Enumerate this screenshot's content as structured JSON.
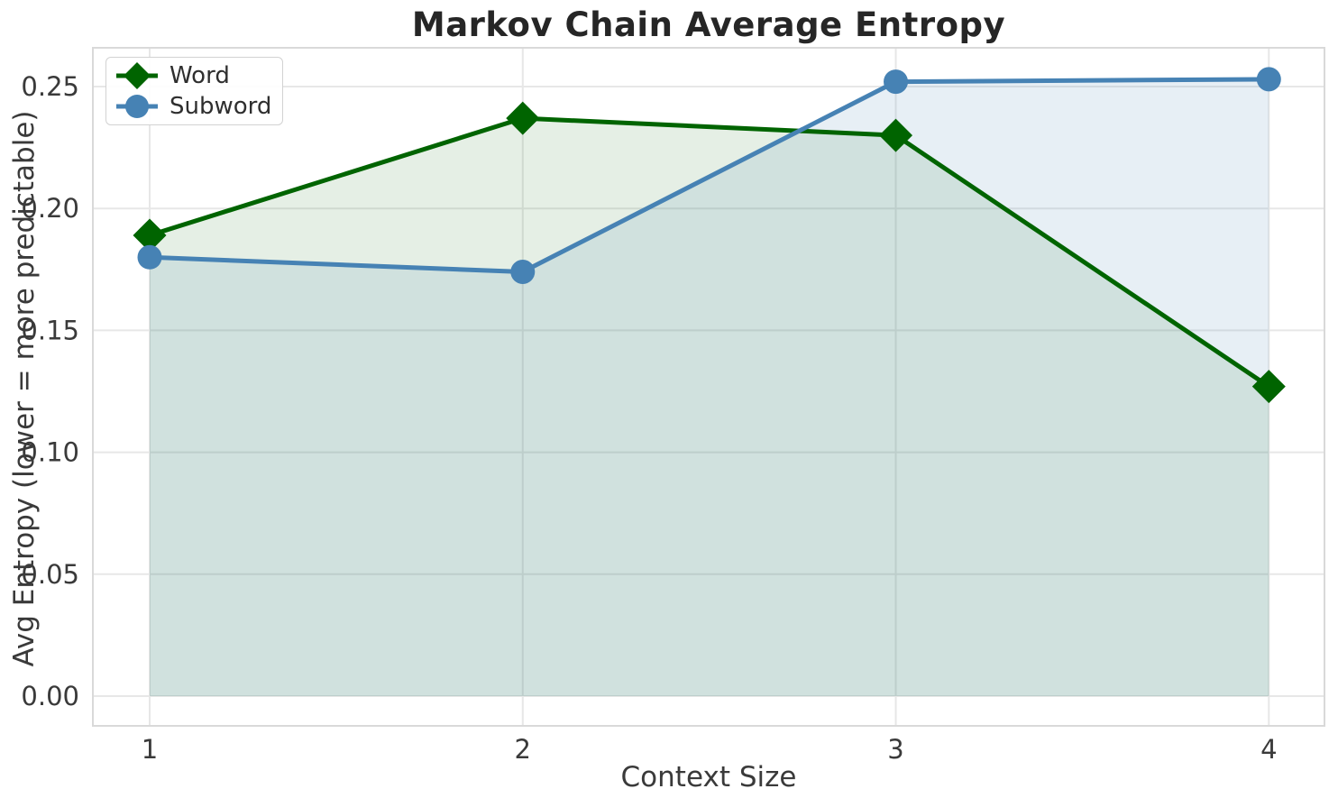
{
  "chart_data": {
    "type": "line",
    "title": "Markov Chain Average Entropy",
    "xlabel": "Context Size",
    "ylabel": "Avg Entropy (lower = more predictable)",
    "x": [
      1,
      2,
      3,
      4
    ],
    "xticks": [
      "1",
      "2",
      "3",
      "4"
    ],
    "ytick_values": [
      0.0,
      0.05,
      0.1,
      0.15,
      0.2,
      0.25
    ],
    "ytick_labels": [
      "0.00",
      "0.05",
      "0.10",
      "0.15",
      "0.20",
      "0.25"
    ],
    "xlim": [
      0.85,
      4.15
    ],
    "ylim": [
      -0.012,
      0.266
    ],
    "grid": true,
    "legend_position": "upper left",
    "area_fill_to_zero": true,
    "series": [
      {
        "name": "Word",
        "marker": "diamond",
        "color": "#006400",
        "fill": "rgba(0,100,0,0.10)",
        "values": [
          0.189,
          0.237,
          0.23,
          0.127
        ]
      },
      {
        "name": "Subword",
        "marker": "circle",
        "color": "#4682b4",
        "fill": "rgba(70,130,180,0.13)",
        "values": [
          0.18,
          0.174,
          0.252,
          0.253
        ]
      }
    ],
    "style": {
      "grid_color": "#e7e7e7",
      "spine_color": "#d9d9d9",
      "tick_color": "#3a3a3a",
      "line_width": 5,
      "diamond_half": 18.5,
      "circle_radius": 13.5
    }
  }
}
